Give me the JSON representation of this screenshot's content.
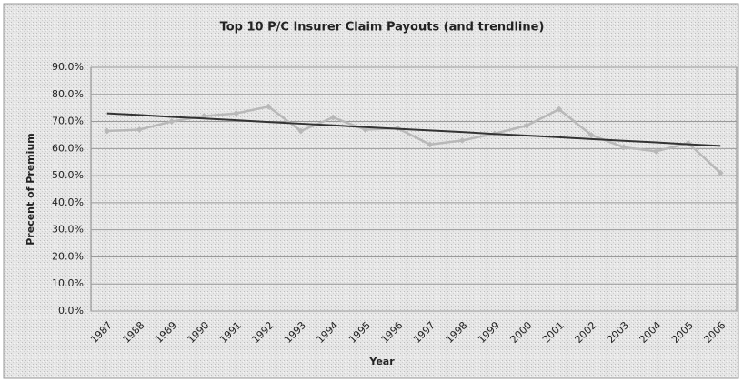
{
  "chart_data": {
    "type": "line",
    "title": "Top 10 P/C Insurer Claim Payouts (and trendline)",
    "x_label": "Year",
    "y_label": "Precent of Premium",
    "categories": [
      "1987",
      "1988",
      "1989",
      "1990",
      "1991",
      "1992",
      "1993",
      "1994",
      "1995",
      "1996",
      "1997",
      "1998",
      "1999",
      "2000",
      "2001",
      "2002",
      "2003",
      "2004",
      "2005",
      "2006"
    ],
    "series": [
      {
        "color": "#b8b8b8",
        "values": [
          66.5,
          67,
          70,
          72,
          73,
          75.5,
          66.5,
          71.5,
          67,
          67.5,
          61.5,
          63,
          65.5,
          68.5,
          74.5,
          65,
          60.5,
          59,
          62,
          51
        ]
      },
      {
        "color": "#333333",
        "values": [
          73.0,
          72.4,
          71.7,
          71.1,
          70.5,
          69.8,
          69.2,
          68.6,
          67.9,
          67.3,
          66.7,
          66.1,
          65.4,
          64.8,
          64.2,
          63.5,
          62.9,
          62.3,
          61.6,
          61.0
        ]
      }
    ],
    "ylim": [
      0,
      90
    ],
    "yticks": [
      {
        "value": 0,
        "label": "0.0%"
      },
      {
        "value": 10,
        "label": "10.0%"
      },
      {
        "value": 20,
        "label": "20.0%"
      },
      {
        "value": 30,
        "label": "30.0%"
      },
      {
        "value": 40,
        "label": "40.0%"
      },
      {
        "value": 50,
        "label": "50.0%"
      },
      {
        "value": 60,
        "label": "60.0%"
      },
      {
        "value": 70,
        "label": "70.0%"
      },
      {
        "value": 80,
        "label": "80.0%"
      },
      {
        "value": 90,
        "label": "90.0%"
      }
    ],
    "grid": true
  }
}
